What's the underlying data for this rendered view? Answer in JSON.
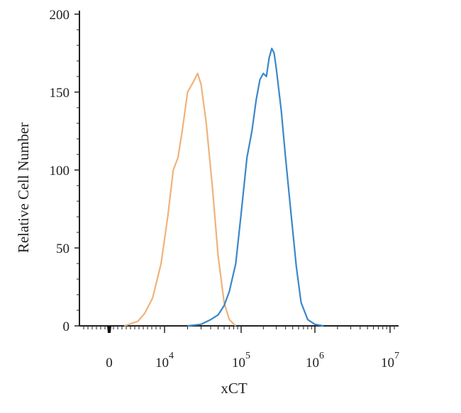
{
  "chart_data": {
    "type": "line",
    "title": "",
    "xlabel": "xCT",
    "ylabel": "Relative Cell Number",
    "x_scale": "log (biexponential; 0 shown)",
    "ylim": [
      0,
      200
    ],
    "y_ticks": [
      0,
      50,
      100,
      150,
      200
    ],
    "x_ticks": [
      {
        "value": 0,
        "base": "0",
        "exp": ""
      },
      {
        "value": 10000,
        "base": "10",
        "exp": "4"
      },
      {
        "value": 100000,
        "base": "10",
        "exp": "5"
      },
      {
        "value": 1000000,
        "base": "10",
        "exp": "6"
      },
      {
        "value": 10000000,
        "base": "10",
        "exp": "7"
      }
    ],
    "grid": false,
    "legend": "none",
    "series": [
      {
        "color": "#f0b27a",
        "points": [
          [
            3000,
            0
          ],
          [
            4500,
            3
          ],
          [
            5500,
            8
          ],
          [
            7000,
            18
          ],
          [
            9000,
            40
          ],
          [
            11000,
            70
          ],
          [
            13000,
            100
          ],
          [
            15000,
            108
          ],
          [
            17000,
            125
          ],
          [
            20000,
            150
          ],
          [
            24000,
            157
          ],
          [
            27000,
            162
          ],
          [
            30000,
            155
          ],
          [
            35000,
            130
          ],
          [
            42000,
            90
          ],
          [
            50000,
            45
          ],
          [
            60000,
            15
          ],
          [
            70000,
            4
          ],
          [
            85000,
            0
          ]
        ]
      },
      {
        "color": "#3a87c9",
        "points": [
          [
            20000,
            0
          ],
          [
            30000,
            1
          ],
          [
            40000,
            4
          ],
          [
            50000,
            7
          ],
          [
            60000,
            13
          ],
          [
            70000,
            22
          ],
          [
            85000,
            40
          ],
          [
            100000,
            72
          ],
          [
            120000,
            108
          ],
          [
            140000,
            125
          ],
          [
            160000,
            145
          ],
          [
            180000,
            158
          ],
          [
            200000,
            162
          ],
          [
            220000,
            160
          ],
          [
            240000,
            172
          ],
          [
            260000,
            178
          ],
          [
            280000,
            175
          ],
          [
            300000,
            165
          ],
          [
            350000,
            138
          ],
          [
            400000,
            108
          ],
          [
            480000,
            70
          ],
          [
            560000,
            38
          ],
          [
            650000,
            15
          ],
          [
            800000,
            4
          ],
          [
            1000000,
            1
          ],
          [
            1300000,
            0
          ]
        ]
      }
    ]
  }
}
